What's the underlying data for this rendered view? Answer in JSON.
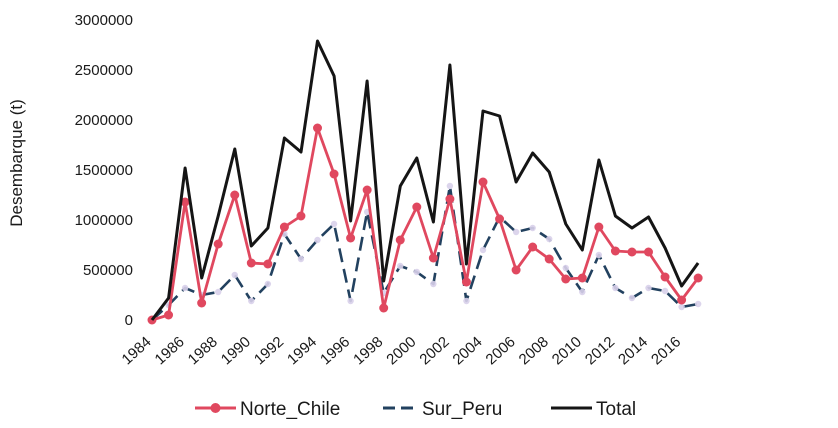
{
  "chart_data": {
    "type": "line",
    "title": "",
    "xlabel": "",
    "ylabel": "Desembarque (t)",
    "x": [
      1984,
      1985,
      1986,
      1987,
      1988,
      1989,
      1990,
      1991,
      1992,
      1993,
      1994,
      1995,
      1996,
      1997,
      1998,
      1999,
      2000,
      2001,
      2002,
      2003,
      2004,
      2005,
      2006,
      2007,
      2008,
      2009,
      2010,
      2011,
      2012,
      2013,
      2014,
      2015,
      2016,
      2017
    ],
    "x_tick_labels": [
      "1984",
      "1986",
      "1988",
      "1990",
      "1992",
      "1994",
      "1996",
      "1998",
      "2000",
      "2002",
      "2004",
      "2006",
      "2008",
      "2010",
      "2012",
      "2014",
      "2016"
    ],
    "ylim": [
      0,
      3000000
    ],
    "y_tick_labels": [
      "0",
      "500000",
      "1000000",
      "1500000",
      "2000000",
      "2500000",
      "3000000"
    ],
    "grid": false,
    "legend_position": "bottom",
    "series": [
      {
        "name": "Norte_Chile",
        "color": "#e0485f",
        "marker": "circle",
        "values": [
          0,
          50000,
          1180000,
          170000,
          760000,
          1250000,
          570000,
          560000,
          930000,
          1040000,
          1920000,
          1460000,
          820000,
          1300000,
          120000,
          800000,
          1130000,
          620000,
          1210000,
          380000,
          1380000,
          1010000,
          500000,
          730000,
          610000,
          410000,
          420000,
          930000,
          690000,
          680000,
          680000,
          430000,
          200000,
          420000
        ]
      },
      {
        "name": "Sur_Peru",
        "color": "#22415f",
        "dash": "dash",
        "values": [
          0,
          150000,
          320000,
          250000,
          280000,
          450000,
          190000,
          360000,
          860000,
          610000,
          800000,
          960000,
          190000,
          1080000,
          270000,
          540000,
          480000,
          360000,
          1340000,
          190000,
          700000,
          1030000,
          880000,
          920000,
          810000,
          520000,
          280000,
          650000,
          320000,
          220000,
          320000,
          290000,
          130000,
          160000
        ]
      },
      {
        "name": "Total",
        "color": "#151515",
        "values": [
          0,
          220000,
          1520000,
          420000,
          1040000,
          1710000,
          740000,
          920000,
          1820000,
          1680000,
          2790000,
          2440000,
          990000,
          2390000,
          390000,
          1340000,
          1620000,
          980000,
          2550000,
          560000,
          2090000,
          2040000,
          1380000,
          1670000,
          1480000,
          960000,
          700000,
          1600000,
          1040000,
          920000,
          1030000,
          720000,
          340000,
          570000
        ]
      }
    ]
  }
}
